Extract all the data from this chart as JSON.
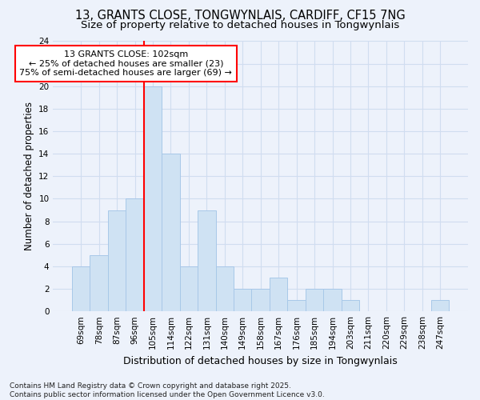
{
  "title_line1": "13, GRANTS CLOSE, TONGWYNLAIS, CARDIFF, CF15 7NG",
  "title_line2": "Size of property relative to detached houses in Tongwynlais",
  "xlabel": "Distribution of detached houses by size in Tongwynlais",
  "ylabel": "Number of detached properties",
  "bar_labels": [
    "69sqm",
    "78sqm",
    "87sqm",
    "96sqm",
    "105sqm",
    "114sqm",
    "122sqm",
    "131sqm",
    "140sqm",
    "149sqm",
    "158sqm",
    "167sqm",
    "176sqm",
    "185sqm",
    "194sqm",
    "203sqm",
    "211sqm",
    "220sqm",
    "229sqm",
    "238sqm",
    "247sqm"
  ],
  "bar_values": [
    4,
    5,
    9,
    10,
    20,
    14,
    4,
    9,
    4,
    2,
    2,
    3,
    1,
    2,
    2,
    1,
    0,
    0,
    0,
    0,
    1
  ],
  "bar_color": "#cfe2f3",
  "bar_edge_color": "#a8c8e8",
  "vline_x_index": 4,
  "vline_color": "red",
  "annotation_text": "13 GRANTS CLOSE: 102sqm\n← 25% of detached houses are smaller (23)\n75% of semi-detached houses are larger (69) →",
  "annotation_box_facecolor": "white",
  "annotation_box_edgecolor": "red",
  "ylim": [
    0,
    24
  ],
  "yticks": [
    0,
    2,
    4,
    6,
    8,
    10,
    12,
    14,
    16,
    18,
    20,
    22,
    24
  ],
  "footnote": "Contains HM Land Registry data © Crown copyright and database right 2025.\nContains public sector information licensed under the Open Government Licence v3.0.",
  "bg_color": "#edf2fb",
  "grid_color": "#d0ddf0",
  "title_fontsize": 10.5,
  "subtitle_fontsize": 9.5,
  "tick_fontsize": 7.5,
  "ylabel_fontsize": 8.5,
  "xlabel_fontsize": 9,
  "footnote_fontsize": 6.5,
  "annot_fontsize": 8
}
